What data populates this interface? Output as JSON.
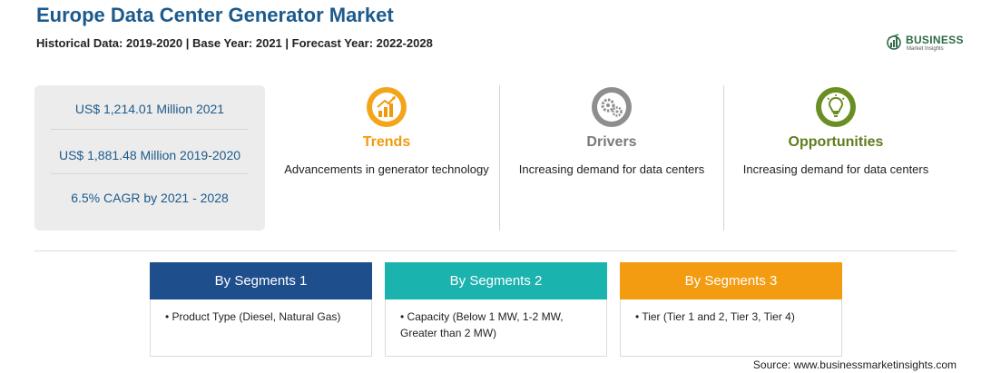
{
  "header": {
    "title": "Europe Data Center Generator Market",
    "subtitle": "Historical Data: 2019-2020 | Base Year: 2021 | Forecast Year: 2022-2028"
  },
  "logo": {
    "name": "BUSINESS",
    "tagline": "Market Insights",
    "icon": "business-insights-logo"
  },
  "stats": [
    "US$ 1,214.01 Million 2021",
    "US$ 1,881.48 Million 2019-2020",
    "6.5% CAGR by 2021 - 2028"
  ],
  "columns": [
    {
      "title": "Trends",
      "text": "Advancements in generator technology",
      "icon": "trend-chart-icon",
      "color": "#f09a0b"
    },
    {
      "title": "Drivers",
      "text": "Increasing demand for data centers",
      "icon": "gears-icon",
      "color": "#7a7a7a"
    },
    {
      "title": "Opportunities",
      "text": "Increasing demand for data centers",
      "icon": "lightbulb-icon",
      "color": "#5e7d1f"
    }
  ],
  "segments": [
    {
      "title": "By Segments 1",
      "item": "Product Type (Diesel, Natural Gas)",
      "color": "#1f4e8c"
    },
    {
      "title": "By Segments 2",
      "item": "Capacity (Below 1 MW, 1-2 MW, Greater than 2 MW)",
      "color": "#1bb3ae"
    },
    {
      "title": "By Segments 3",
      "item": "Tier (Tier 1 and 2, Tier 3, Tier 4)",
      "color": "#f39c12"
    }
  ],
  "source": "Source: www.businessmarketinsights.com"
}
